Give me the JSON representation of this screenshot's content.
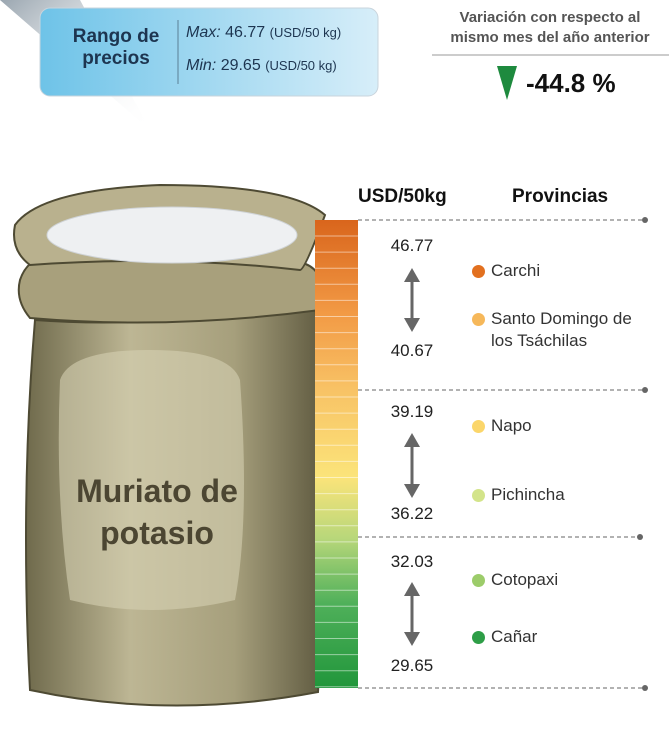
{
  "header": {
    "range_label": "Rango de precios",
    "max_label": "Max:",
    "max_value": 46.77,
    "max_unit": "(USD/50 kg)",
    "min_label": "Min:",
    "min_value": 29.65,
    "min_unit": "(USD/50 kg)"
  },
  "variation": {
    "title": "Variación con respecto al mismo mes del año anterior",
    "value": "-44.8 %"
  },
  "sack_label": "Muriato de potasio",
  "table": {
    "price_header": "USD/50kg",
    "province_header": "Provincias",
    "groups": [
      {
        "high": 46.77,
        "low": 40.67,
        "provinces": [
          {
            "name": "Carchi",
            "color": "#e2701f"
          },
          {
            "name": "Santo Domingo de los Tsáchilas",
            "color": "#f6b85a"
          }
        ]
      },
      {
        "high": 39.19,
        "low": 36.22,
        "provinces": [
          {
            "name": "Napo",
            "color": "#fbd66a"
          },
          {
            "name": "Pichincha",
            "color": "#d3e48a"
          }
        ]
      },
      {
        "high": 32.03,
        "low": 29.65,
        "provinces": [
          {
            "name": "Cotopaxi",
            "color": "#9ccc6a"
          },
          {
            "name": "Cañar",
            "color": "#2e9e47"
          }
        ]
      }
    ]
  }
}
